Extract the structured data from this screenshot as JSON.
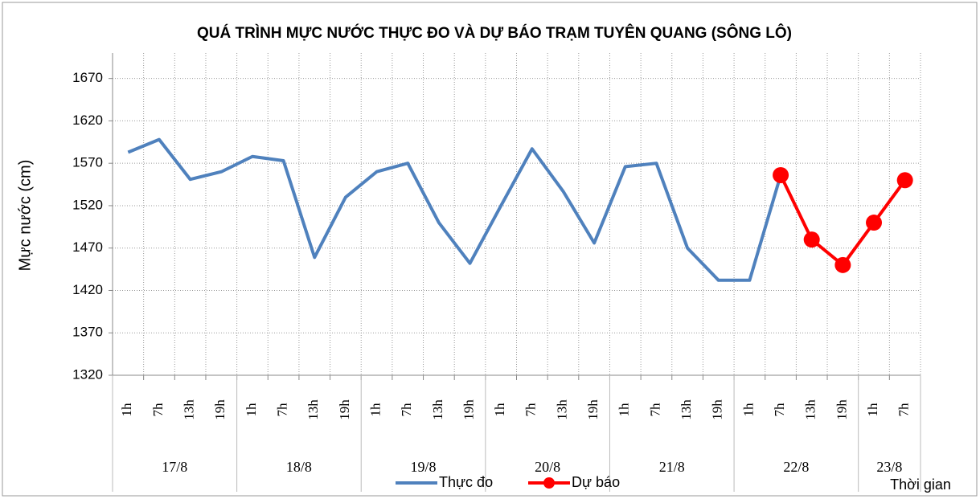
{
  "chart_data": {
    "type": "line",
    "title": "QUÁ TRÌNH MỰC NƯỚC THỰC ĐO VÀ DỰ BÁO TRẠM TUYÊN QUANG (SÔNG LÔ)",
    "y_label": "Mực nước (cm)",
    "x_label": "Thời gian",
    "categories": [
      "1h",
      "7h",
      "13h",
      "19h",
      "1h",
      "7h",
      "13h",
      "19h",
      "1h",
      "7h",
      "13h",
      "19h",
      "1h",
      "7h",
      "13h",
      "19h",
      "1h",
      "7h",
      "13h",
      "19h",
      "1h",
      "7h",
      "13h",
      "19h",
      "1h",
      "7h"
    ],
    "groups": [
      {
        "label": "17/8",
        "span": 4
      },
      {
        "label": "18/8",
        "span": 4
      },
      {
        "label": "19/8",
        "span": 4
      },
      {
        "label": "20/8",
        "span": 4
      },
      {
        "label": "21/8",
        "span": 4
      },
      {
        "label": "22/8",
        "span": 4
      },
      {
        "label": "23/8",
        "span": 2
      }
    ],
    "series": [
      {
        "name": "Thực đo",
        "color": "#4f81bd",
        "marker": false,
        "values": [
          1583,
          1598,
          1551,
          1560,
          1578,
          1573,
          1459,
          1530,
          1560,
          1570,
          1500,
          1452,
          1520,
          1587,
          1537,
          1476,
          1566,
          1570,
          1470,
          1432,
          1432,
          1556,
          null,
          null,
          null,
          null
        ]
      },
      {
        "name": "Dự báo",
        "color": "#ff0000",
        "marker": true,
        "values": [
          null,
          null,
          null,
          null,
          null,
          null,
          null,
          null,
          null,
          null,
          null,
          null,
          null,
          null,
          null,
          null,
          null,
          null,
          null,
          null,
          null,
          1556,
          1480,
          1450,
          1500,
          1550
        ]
      }
    ],
    "ylim": [
      1320,
      1700
    ],
    "yticks": [
      1320,
      1370,
      1420,
      1470,
      1520,
      1570,
      1620,
      1670
    ],
    "grid": true
  }
}
